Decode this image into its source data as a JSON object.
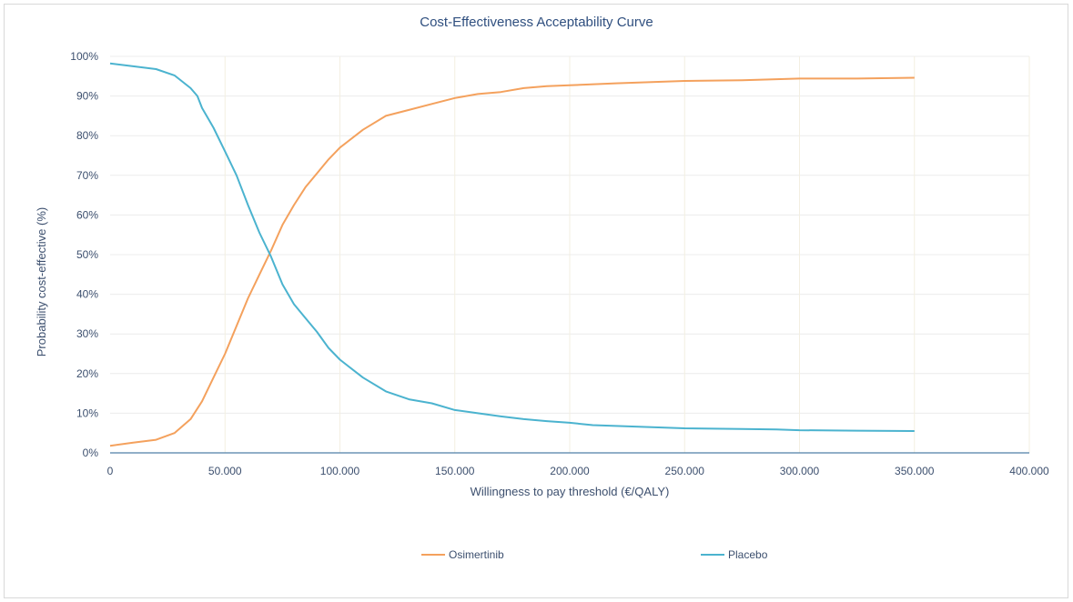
{
  "chart_data": {
    "type": "line",
    "title": "Cost-Effectiveness Acceptability Curve",
    "xlabel": "Willingness to pay threshold (€/QALY)",
    "ylabel": "Probability cost-effective (%)",
    "xlim": [
      0,
      400000
    ],
    "ylim": [
      0,
      100
    ],
    "x_ticks": [
      0,
      50000,
      100000,
      150000,
      200000,
      250000,
      300000,
      350000,
      400000
    ],
    "x_tick_labels": [
      "0",
      "50.000",
      "100.000",
      "150.000",
      "200.000",
      "250.000",
      "300.000",
      "350.000",
      "400.000"
    ],
    "y_ticks": [
      0,
      10,
      20,
      30,
      40,
      50,
      60,
      70,
      80,
      90,
      100
    ],
    "y_tick_labels": [
      "0%",
      "10%",
      "20%",
      "30%",
      "40%",
      "50%",
      "60%",
      "70%",
      "80%",
      "90%",
      "100%"
    ],
    "grid": true,
    "legend_position": "bottom",
    "series": [
      {
        "name": "Osimertinib",
        "color": "#f4a15d",
        "points": [
          [
            0,
            1.8
          ],
          [
            10000,
            2.6
          ],
          [
            20000,
            3.3
          ],
          [
            28000,
            5.0
          ],
          [
            35000,
            8.5
          ],
          [
            40000,
            13.0
          ],
          [
            45000,
            19.0
          ],
          [
            50000,
            25.0
          ],
          [
            55000,
            32.0
          ],
          [
            60000,
            39.0
          ],
          [
            65000,
            45.0
          ],
          [
            70000,
            51.0
          ],
          [
            75000,
            57.5
          ],
          [
            80000,
            62.5
          ],
          [
            85000,
            67.0
          ],
          [
            90000,
            70.5
          ],
          [
            95000,
            74.0
          ],
          [
            100000,
            77.0
          ],
          [
            110000,
            81.5
          ],
          [
            120000,
            85.0
          ],
          [
            130000,
            86.5
          ],
          [
            140000,
            88.0
          ],
          [
            150000,
            89.5
          ],
          [
            160000,
            90.5
          ],
          [
            170000,
            91.0
          ],
          [
            180000,
            92.0
          ],
          [
            190000,
            92.5
          ],
          [
            200000,
            92.7
          ],
          [
            220000,
            93.2
          ],
          [
            250000,
            93.8
          ],
          [
            275000,
            94.0
          ],
          [
            300000,
            94.4
          ],
          [
            325000,
            94.4
          ],
          [
            350000,
            94.6
          ]
        ]
      },
      {
        "name": "Placebo",
        "color": "#4bb3cf",
        "points": [
          [
            0,
            98.2
          ],
          [
            10000,
            97.5
          ],
          [
            20000,
            96.8
          ],
          [
            28000,
            95.2
          ],
          [
            35000,
            92.0
          ],
          [
            38000,
            90.0
          ],
          [
            40000,
            87.0
          ],
          [
            45000,
            82.0
          ],
          [
            50000,
            76.0
          ],
          [
            55000,
            70.0
          ],
          [
            60000,
            62.5
          ],
          [
            65000,
            55.5
          ],
          [
            70000,
            49.5
          ],
          [
            75000,
            42.5
          ],
          [
            80000,
            37.5
          ],
          [
            85000,
            34.0
          ],
          [
            90000,
            30.5
          ],
          [
            95000,
            26.5
          ],
          [
            100000,
            23.5
          ],
          [
            110000,
            19.0
          ],
          [
            120000,
            15.5
          ],
          [
            130000,
            13.5
          ],
          [
            140000,
            12.5
          ],
          [
            150000,
            10.8
          ],
          [
            160000,
            10.0
          ],
          [
            170000,
            9.2
          ],
          [
            180000,
            8.5
          ],
          [
            190000,
            8.0
          ],
          [
            200000,
            7.6
          ],
          [
            210000,
            7.0
          ],
          [
            230000,
            6.6
          ],
          [
            250000,
            6.2
          ],
          [
            275000,
            6.0
          ],
          [
            290000,
            5.9
          ],
          [
            300000,
            5.7
          ],
          [
            325000,
            5.6
          ],
          [
            350000,
            5.5
          ]
        ]
      }
    ]
  }
}
